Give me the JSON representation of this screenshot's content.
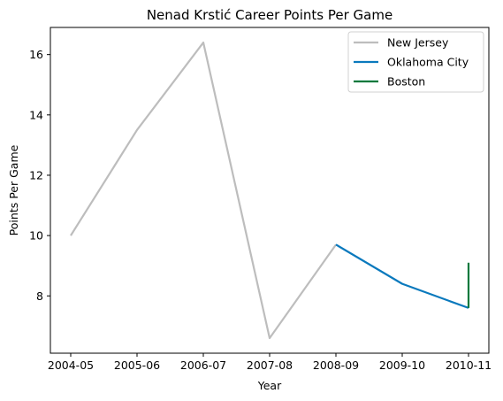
{
  "chart_data": {
    "type": "line",
    "title": "Nenad Krstić Career Points Per Game",
    "xlabel": "Year",
    "ylabel": "Points Per Game",
    "categories": [
      "2004-05",
      "2005-06",
      "2006-07",
      "2007-08",
      "2008-09",
      "2009-10",
      "2010-11"
    ],
    "ylim": [
      6.1,
      16.9
    ],
    "yticks": [
      8,
      10,
      12,
      14,
      16
    ],
    "grid": false,
    "legend_position": "top-right",
    "series": [
      {
        "name": "New Jersey",
        "color": "#bdbdbd",
        "points": [
          {
            "x": "2004-05",
            "y": 10.0
          },
          {
            "x": "2005-06",
            "y": 13.5
          },
          {
            "x": "2006-07",
            "y": 16.4
          },
          {
            "x": "2007-08",
            "y": 6.6
          },
          {
            "x": "2008-09",
            "y": 9.7
          }
        ]
      },
      {
        "name": "Oklahoma City",
        "color": "#0a79bd",
        "points": [
          {
            "x": "2008-09",
            "y": 9.7
          },
          {
            "x": "2009-10",
            "y": 8.4
          },
          {
            "x": "2010-11",
            "y": 7.6
          }
        ]
      },
      {
        "name": "Boston",
        "color": "#00783c",
        "points": [
          {
            "x": "2010-11",
            "y": 7.6
          },
          {
            "x": "2010-11",
            "y": 9.1
          }
        ]
      }
    ]
  }
}
